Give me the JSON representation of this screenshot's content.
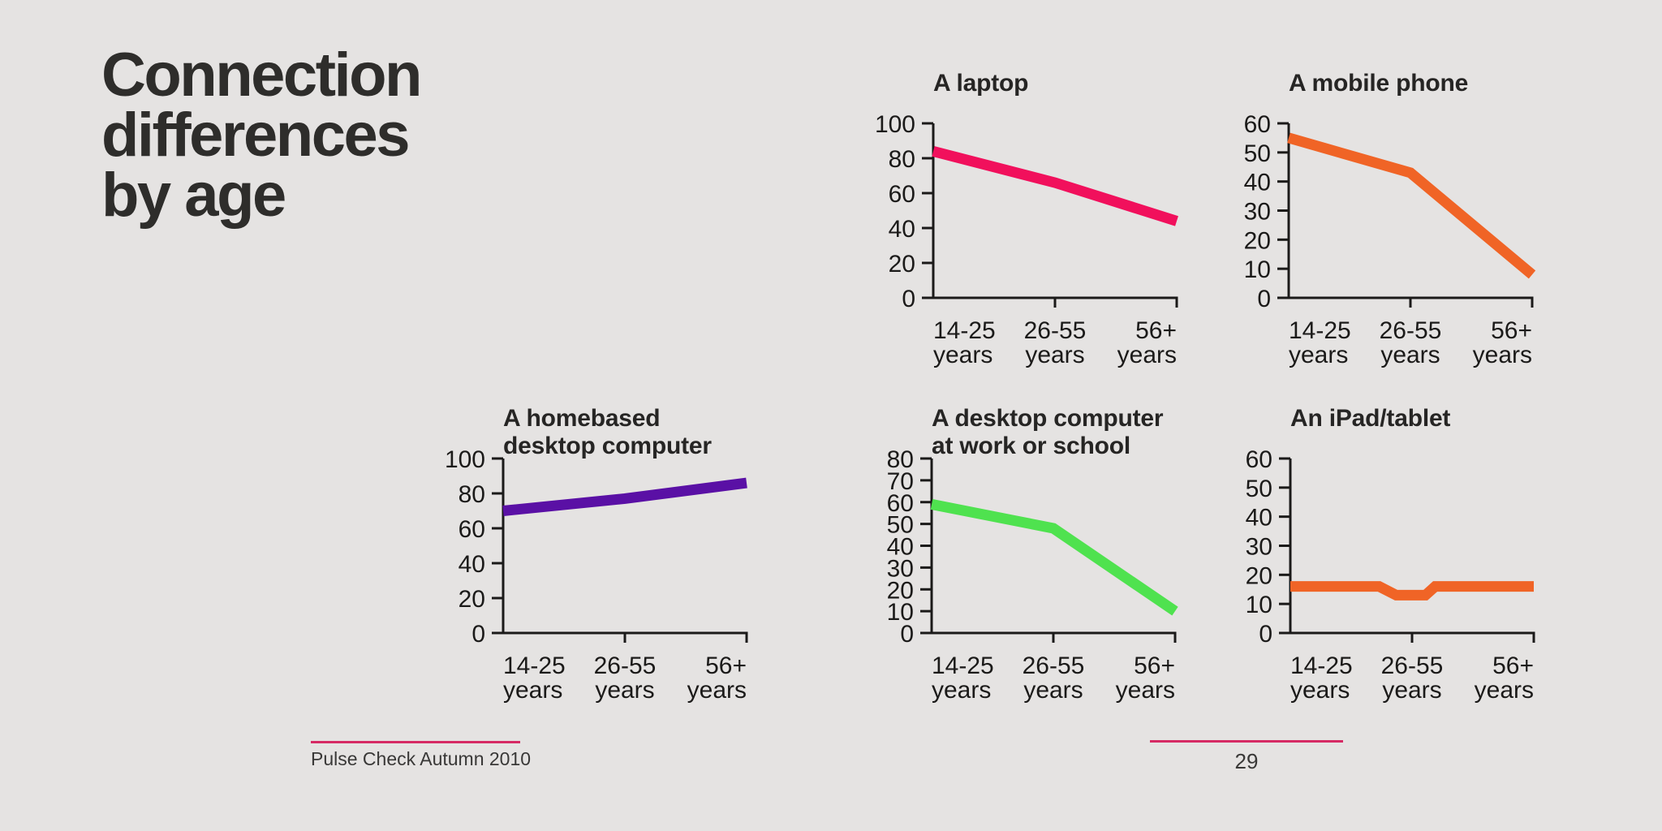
{
  "slide": {
    "title": "Connection\ndifferences\nby age",
    "footer": {
      "source_label": "Pulse Check Autumn 2010",
      "page_number": "29"
    },
    "colors": {
      "background": "#e5e3e2",
      "axis": "#1b1a19",
      "title_text": "#2e2d2b",
      "footer_rule_pink": "#d62a64",
      "laptop_pink": "#f1105c",
      "mobile_orange": "#f06426",
      "homebased_purple": "#5a10a5",
      "work_green": "#4fe24f",
      "ipad_orange": "#f06426"
    }
  },
  "chart_data": [
    {
      "type": "line",
      "title": "A laptop",
      "categories": [
        "14-25\nyears",
        "26-55\nyears",
        "56+\nyears"
      ],
      "values": [
        84,
        66,
        44
      ],
      "points": [
        [
          0,
          84
        ],
        [
          1,
          66
        ],
        [
          2,
          44
        ]
      ],
      "ylim": [
        0,
        100
      ],
      "yticks": [
        0,
        20,
        40,
        60,
        80,
        100
      ],
      "xlabel": "",
      "ylabel": "",
      "grid": false,
      "legend": "none",
      "color": "#f1105c"
    },
    {
      "type": "line",
      "title": "A mobile phone",
      "categories": [
        "14-25\nyears",
        "26-55\nyears",
        "56+\nyears"
      ],
      "values": [
        55,
        43,
        8
      ],
      "points": [
        [
          0,
          55
        ],
        [
          1,
          43
        ],
        [
          2,
          8
        ]
      ],
      "ylim": [
        0,
        60
      ],
      "yticks": [
        0,
        10,
        20,
        30,
        40,
        50,
        60
      ],
      "xlabel": "",
      "ylabel": "",
      "grid": false,
      "legend": "none",
      "color": "#f06426"
    },
    {
      "type": "line",
      "title": "A homebased\ndesktop computer",
      "categories": [
        "14-25\nyears",
        "26-55\nyears",
        "56+\nyears"
      ],
      "values": [
        70,
        77,
        86
      ],
      "points": [
        [
          0,
          70
        ],
        [
          1,
          77
        ],
        [
          2,
          86
        ]
      ],
      "ylim": [
        0,
        100
      ],
      "yticks": [
        0,
        20,
        40,
        60,
        80,
        100
      ],
      "xlabel": "",
      "ylabel": "",
      "grid": false,
      "legend": "none",
      "color": "#5a10a5"
    },
    {
      "type": "line",
      "title": "A desktop computer\nat work or school",
      "categories": [
        "14-25\nyears",
        "26-55\nyears",
        "56+\nyears"
      ],
      "values": [
        59,
        48,
        10
      ],
      "points": [
        [
          0,
          59
        ],
        [
          1,
          48
        ],
        [
          2,
          10
        ]
      ],
      "ylim": [
        0,
        80
      ],
      "yticks": [
        0,
        10,
        20,
        30,
        40,
        50,
        60,
        70,
        80
      ],
      "xlabel": "",
      "ylabel": "",
      "grid": false,
      "legend": "none",
      "color": "#4fe24f"
    },
    {
      "type": "line",
      "title": "An iPad/tablet",
      "categories": [
        "14-25\nyears",
        "26-55\nyears",
        "56+\nyears"
      ],
      "values": [
        16,
        13,
        16
      ],
      "points": [
        [
          0,
          16
        ],
        [
          0.73,
          16
        ],
        [
          0.87,
          13
        ],
        [
          1.11,
          13
        ],
        [
          1.19,
          16
        ],
        [
          2,
          16
        ]
      ],
      "ylim": [
        0,
        60
      ],
      "yticks": [
        0,
        10,
        20,
        30,
        40,
        50,
        60
      ],
      "xlabel": "",
      "ylabel": "",
      "grid": false,
      "legend": "none",
      "color": "#f06426"
    }
  ]
}
